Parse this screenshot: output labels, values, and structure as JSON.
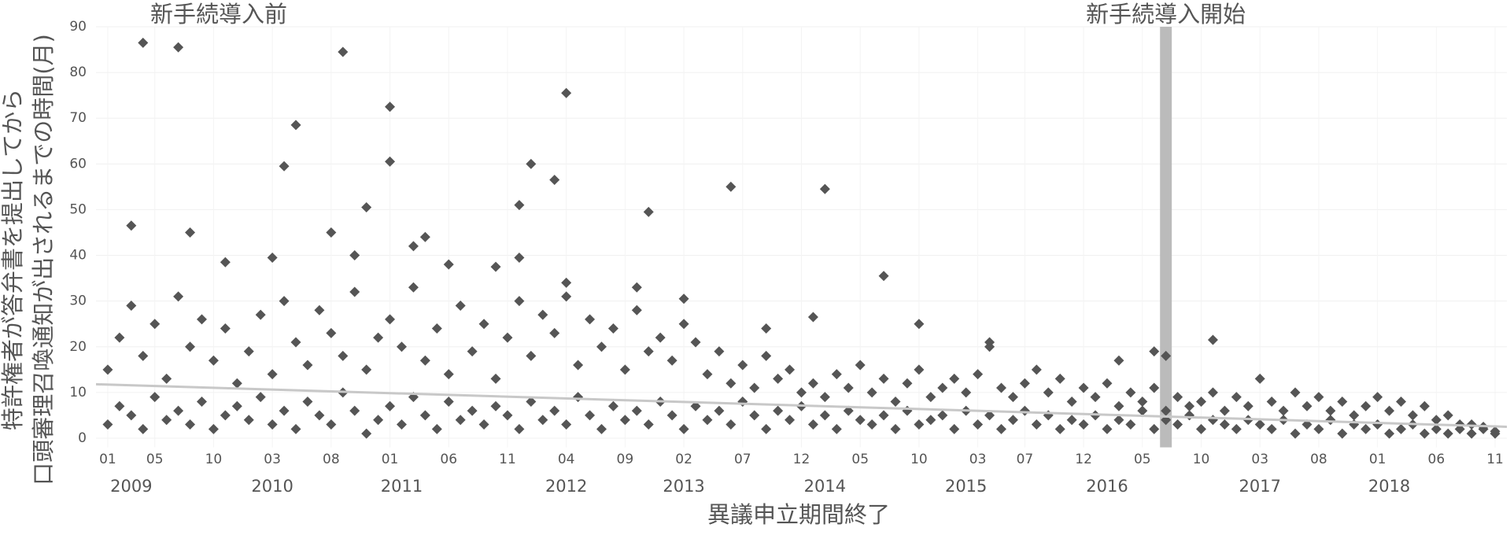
{
  "chart_data": {
    "type": "scatter",
    "y_label": [
      "特許権者が答弁書を提出してから",
      "口頭審理召喚通知が出されるまでの時間(月)"
    ],
    "x_label": "異議申立期間終了",
    "annotations": [
      "新手続導入前",
      "新手続導入開始"
    ],
    "marker_period": "2016-07",
    "color": "#555555",
    "grid": true,
    "xlim": [
      "2008-12",
      "2018-12"
    ],
    "ylim": [
      -2,
      90
    ],
    "yticks": [
      0,
      10,
      20,
      30,
      40,
      50,
      60,
      70,
      80,
      90
    ],
    "xticks": [
      {
        "value": "2009-01",
        "label": "01"
      },
      {
        "value": "2009-05",
        "label": "05"
      },
      {
        "value": "2009-10",
        "label": "10"
      },
      {
        "value": "2010-03",
        "label": "03"
      },
      {
        "value": "2010-08",
        "label": "08"
      },
      {
        "value": "2011-01",
        "label": "01"
      },
      {
        "value": "2011-06",
        "label": "06"
      },
      {
        "value": "2011-11",
        "label": "11"
      },
      {
        "value": "2012-04",
        "label": "04"
      },
      {
        "value": "2012-09",
        "label": "09"
      },
      {
        "value": "2013-02",
        "label": "02"
      },
      {
        "value": "2013-07",
        "label": "07"
      },
      {
        "value": "2013-12",
        "label": "12"
      },
      {
        "value": "2014-05",
        "label": "05"
      },
      {
        "value": "2014-10",
        "label": "10"
      },
      {
        "value": "2015-03",
        "label": "03"
      },
      {
        "value": "2015-07",
        "label": "07"
      },
      {
        "value": "2015-12",
        "label": "12"
      },
      {
        "value": "2016-05",
        "label": "05"
      },
      {
        "value": "2016-10",
        "label": "10"
      },
      {
        "value": "2017-03",
        "label": "03"
      },
      {
        "value": "2017-08",
        "label": "08"
      },
      {
        "value": "2018-01",
        "label": "01"
      },
      {
        "value": "2018-06",
        "label": "06"
      },
      {
        "value": "2018-11",
        "label": "11"
      }
    ],
    "year_ticks": [
      {
        "value": "2009-03",
        "label": "2009"
      },
      {
        "value": "2010-03",
        "label": "2010"
      },
      {
        "value": "2011-02",
        "label": "2011"
      },
      {
        "value": "2012-04",
        "label": "2012"
      },
      {
        "value": "2013-02",
        "label": "2013"
      },
      {
        "value": "2014-02",
        "label": "2014"
      },
      {
        "value": "2015-02",
        "label": "2015"
      },
      {
        "value": "2016-02",
        "label": "2016"
      },
      {
        "value": "2017-03",
        "label": "2017"
      },
      {
        "value": "2018-02",
        "label": "2018"
      }
    ],
    "trendline": {
      "color": "#c8c8c8",
      "x": [
        "2008-12",
        "2018-12"
      ],
      "values": [
        11.8,
        2.5
      ]
    },
    "x": [
      "2009-04",
      "2009-07",
      "2009-03",
      "2010-04",
      "2010-05",
      "2010-03",
      "2010-09",
      "2011-01",
      "2011-01",
      "2010-11",
      "2012-04",
      "2012-01",
      "2012-03",
      "2011-12",
      "2012-11",
      "2013-06",
      "2014-02",
      "2014-07",
      "2016-11",
      "2014-10",
      "2014-01",
      "2013-09",
      "2009-08",
      "2010-08",
      "2011-04",
      "2011-03",
      "2009-11",
      "2011-12",
      "2011-10",
      "2011-06",
      "2010-10",
      "2012-04",
      "2012-10",
      "2013-02",
      "2016-07",
      "2016-06",
      "2016-03",
      "2015-04",
      "2009-01",
      "2009-01",
      "2009-02",
      "2009-02",
      "2009-03",
      "2009-03",
      "2009-04",
      "2009-04",
      "2009-05",
      "2009-05",
      "2009-06",
      "2009-06",
      "2009-07",
      "2009-07",
      "2009-08",
      "2009-08",
      "2009-09",
      "2009-09",
      "2009-10",
      "2009-10",
      "2009-11",
      "2009-11",
      "2009-12",
      "2009-12",
      "2010-01",
      "2010-01",
      "2010-02",
      "2010-02",
      "2010-03",
      "2010-03",
      "2010-04",
      "2010-04",
      "2010-05",
      "2010-05",
      "2010-06",
      "2010-06",
      "2010-07",
      "2010-07",
      "2010-08",
      "2010-08",
      "2010-09",
      "2010-09",
      "2010-10",
      "2010-10",
      "2010-11",
      "2010-11",
      "2010-12",
      "2010-12",
      "2011-01",
      "2011-01",
      "2011-02",
      "2011-02",
      "2011-03",
      "2011-03",
      "2011-04",
      "2011-04",
      "2011-05",
      "2011-05",
      "2011-06",
      "2011-06",
      "2011-07",
      "2011-07",
      "2011-08",
      "2011-08",
      "2011-09",
      "2011-09",
      "2011-10",
      "2011-10",
      "2011-11",
      "2011-11",
      "2011-12",
      "2011-12",
      "2012-01",
      "2012-01",
      "2012-02",
      "2012-02",
      "2012-03",
      "2012-03",
      "2012-04",
      "2012-04",
      "2012-05",
      "2012-05",
      "2012-06",
      "2012-06",
      "2012-07",
      "2012-07",
      "2012-08",
      "2012-08",
      "2012-09",
      "2012-09",
      "2012-10",
      "2012-10",
      "2012-11",
      "2012-11",
      "2012-12",
      "2012-12",
      "2013-01",
      "2013-01",
      "2013-02",
      "2013-02",
      "2013-03",
      "2013-03",
      "2013-04",
      "2013-04",
      "2013-05",
      "2013-05",
      "2013-06",
      "2013-06",
      "2013-07",
      "2013-07",
      "2013-08",
      "2013-08",
      "2013-09",
      "2013-09",
      "2013-10",
      "2013-10",
      "2013-11",
      "2013-11",
      "2013-12",
      "2013-12",
      "2014-01",
      "2014-01",
      "2014-02",
      "2014-02",
      "2014-03",
      "2014-03",
      "2014-04",
      "2014-04",
      "2014-05",
      "2014-05",
      "2014-06",
      "2014-06",
      "2014-07",
      "2014-07",
      "2014-08",
      "2014-08",
      "2014-09",
      "2014-09",
      "2014-10",
      "2014-10",
      "2014-11",
      "2014-11",
      "2014-12",
      "2014-12",
      "2015-01",
      "2015-01",
      "2015-02",
      "2015-02",
      "2015-03",
      "2015-03",
      "2015-04",
      "2015-04",
      "2015-05",
      "2015-05",
      "2015-06",
      "2015-06",
      "2015-07",
      "2015-07",
      "2015-08",
      "2015-08",
      "2015-09",
      "2015-09",
      "2015-10",
      "2015-10",
      "2015-11",
      "2015-11",
      "2015-12",
      "2015-12",
      "2016-01",
      "2016-01",
      "2016-02",
      "2016-02",
      "2016-03",
      "2016-03",
      "2016-04",
      "2016-04",
      "2016-05",
      "2016-05",
      "2016-06",
      "2016-06",
      "2016-07",
      "2016-07",
      "2016-08",
      "2016-08",
      "2016-09",
      "2016-09",
      "2016-10",
      "2016-10",
      "2016-11",
      "2016-11",
      "2016-12",
      "2016-12",
      "2017-01",
      "2017-01",
      "2017-02",
      "2017-02",
      "2017-03",
      "2017-03",
      "2017-04",
      "2017-04",
      "2017-05",
      "2017-05",
      "2017-06",
      "2017-06",
      "2017-07",
      "2017-07",
      "2017-08",
      "2017-08",
      "2017-09",
      "2017-09",
      "2017-10",
      "2017-10",
      "2017-11",
      "2017-11",
      "2017-12",
      "2017-12",
      "2018-01",
      "2018-01",
      "2018-02",
      "2018-02",
      "2018-03",
      "2018-03",
      "2018-04",
      "2018-04",
      "2018-05",
      "2018-05",
      "2018-06",
      "2018-06",
      "2018-07",
      "2018-07",
      "2018-08",
      "2018-08",
      "2018-09",
      "2018-09",
      "2018-10",
      "2018-10",
      "2018-11",
      "2018-11"
    ],
    "values": [
      86.5,
      85.5,
      46.5,
      59.5,
      68.5,
      39.5,
      84.5,
      72.5,
      60.5,
      50.5,
      75.5,
      60,
      56.5,
      51,
      49.5,
      55,
      54.5,
      35.5,
      21.5,
      25,
      26.5,
      24,
      45,
      45,
      44,
      42,
      38.5,
      39.5,
      37.5,
      38,
      40,
      34,
      33,
      30.5,
      18,
      19,
      17,
      21,
      3,
      15,
      7,
      22,
      5,
      29,
      2,
      18,
      9,
      25,
      4,
      13,
      6,
      31,
      3,
      20,
      8,
      26,
      2,
      17,
      5,
      24,
      7,
      12,
      4,
      19,
      9,
      27,
      3,
      14,
      6,
      30,
      2,
      21,
      8,
      16,
      5,
      28,
      3,
      23,
      10,
      18,
      6,
      32,
      1,
      15,
      4,
      22,
      7,
      26,
      3,
      20,
      9,
      33,
      5,
      17,
      2,
      24,
      8,
      14,
      4,
      29,
      6,
      19,
      3,
      25,
      7,
      13,
      5,
      22,
      2,
      30,
      8,
      18,
      4,
      27,
      6,
      23,
      3,
      31,
      9,
      16,
      5,
      26,
      2,
      20,
      7,
      24,
      4,
      15,
      6,
      28,
      3,
      19,
      8,
      22,
      5,
      17,
      2,
      25,
      7,
      21,
      4,
      14,
      6,
      19,
      3,
      12,
      8,
      16,
      5,
      11,
      2,
      18,
      6,
      13,
      4,
      15,
      7,
      10,
      3,
      12,
      5,
      9,
      2,
      14,
      6,
      11,
      4,
      16,
      3,
      10,
      5,
      13,
      2,
      8,
      6,
      12,
      3,
      15,
      4,
      9,
      5,
      11,
      2,
      13,
      6,
      10,
      3,
      14,
      5,
      20,
      2,
      11,
      4,
      9,
      6,
      12,
      3,
      15,
      5,
      10,
      2,
      13,
      4,
      8,
      3,
      11,
      5,
      9,
      2,
      12,
      4,
      7,
      3,
      10,
      6,
      8,
      2,
      11,
      4,
      6,
      3,
      9,
      5,
      7,
      2,
      8,
      4,
      10,
      3,
      6,
      2,
      9,
      4,
      7,
      3,
      13,
      2,
      8,
      4,
      6,
      1,
      10,
      3,
      7,
      2,
      9,
      4,
      6,
      1,
      8,
      3,
      5,
      2,
      7,
      3,
      9,
      1,
      6,
      2,
      8,
      3,
      5,
      1,
      7,
      2,
      4,
      1,
      5,
      2,
      3,
      1,
      3,
      2,
      2.5,
      1,
      1.5
    ]
  }
}
